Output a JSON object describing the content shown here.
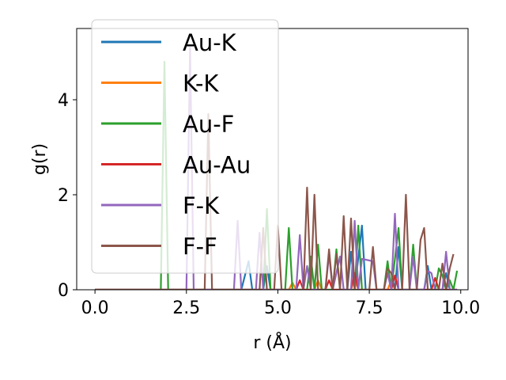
{
  "chart_data": {
    "type": "line",
    "xlabel": "r (Å)",
    "ylabel": "g(r)",
    "xlim": [
      -0.5,
      10.2
    ],
    "ylim": [
      0,
      5.5
    ],
    "xticks": [
      0.0,
      2.5,
      5.0,
      7.5,
      10.0
    ],
    "xtick_labels": [
      "0.0",
      "2.5",
      "5.0",
      "7.5",
      "10.0"
    ],
    "yticks": [
      0,
      2,
      4
    ],
    "ytick_labels": [
      "0",
      "2",
      "4"
    ],
    "legend_position": "upper-left",
    "series": [
      {
        "name": "Au-K",
        "color": "#1f77b4",
        "points": [
          [
            0.0,
            0
          ],
          [
            4.0,
            0
          ],
          [
            4.1,
            0.3
          ],
          [
            4.2,
            0.6
          ],
          [
            4.3,
            0
          ],
          [
            4.6,
            0
          ],
          [
            4.7,
            0.5
          ],
          [
            4.8,
            0
          ],
          [
            6.9,
            0
          ],
          [
            7.0,
            0.8
          ],
          [
            7.1,
            0
          ],
          [
            7.3,
            1.35
          ],
          [
            7.4,
            0
          ],
          [
            8.2,
            0
          ],
          [
            8.3,
            0.9
          ],
          [
            8.4,
            0
          ],
          [
            9.0,
            0
          ],
          [
            9.1,
            0.5
          ],
          [
            9.2,
            0
          ],
          [
            9.5,
            0
          ],
          [
            9.6,
            0.35
          ],
          [
            9.7,
            0
          ],
          [
            9.9,
            0
          ]
        ]
      },
      {
        "name": "K-K",
        "color": "#ff7f0e",
        "points": [
          [
            0.0,
            0
          ],
          [
            5.3,
            0
          ],
          [
            5.4,
            0.15
          ],
          [
            5.5,
            0
          ],
          [
            6.0,
            0
          ],
          [
            6.1,
            0.2
          ],
          [
            6.2,
            0
          ],
          [
            7.0,
            0
          ],
          [
            7.1,
            0.25
          ],
          [
            7.2,
            0
          ],
          [
            8.0,
            0
          ],
          [
            8.1,
            0.2
          ],
          [
            8.2,
            0
          ],
          [
            9.9,
            0
          ]
        ]
      },
      {
        "name": "Au-F",
        "color": "#2ca02c",
        "points": [
          [
            0.0,
            0
          ],
          [
            1.8,
            0
          ],
          [
            1.9,
            4.8
          ],
          [
            2.0,
            0
          ],
          [
            4.6,
            0
          ],
          [
            4.7,
            1.7
          ],
          [
            4.8,
            0
          ],
          [
            5.2,
            0
          ],
          [
            5.3,
            1.3
          ],
          [
            5.4,
            0
          ],
          [
            5.8,
            0
          ],
          [
            5.9,
            0.7
          ],
          [
            6.0,
            0
          ],
          [
            6.1,
            0.95
          ],
          [
            6.2,
            0
          ],
          [
            6.5,
            0
          ],
          [
            6.6,
            0.85
          ],
          [
            6.7,
            0
          ],
          [
            7.1,
            0
          ],
          [
            7.2,
            1.35
          ],
          [
            7.3,
            0
          ],
          [
            7.9,
            0
          ],
          [
            8.0,
            0.6
          ],
          [
            8.1,
            0
          ],
          [
            8.3,
            1.3
          ],
          [
            8.4,
            0
          ],
          [
            8.6,
            0
          ],
          [
            8.7,
            0.95
          ],
          [
            8.8,
            0
          ],
          [
            9.3,
            0
          ],
          [
            9.4,
            0.45
          ],
          [
            9.5,
            0.3
          ],
          [
            9.6,
            0
          ],
          [
            9.7,
            0.2
          ],
          [
            9.8,
            0
          ],
          [
            9.9,
            0.4
          ]
        ]
      },
      {
        "name": "Au-Au",
        "color": "#d62728",
        "points": [
          [
            0.0,
            0
          ],
          [
            5.5,
            0
          ],
          [
            5.6,
            0.2
          ],
          [
            5.7,
            0
          ],
          [
            6.3,
            0
          ],
          [
            6.4,
            0.2
          ],
          [
            6.5,
            0
          ],
          [
            7.0,
            0
          ],
          [
            7.1,
            0.35
          ],
          [
            7.2,
            0
          ],
          [
            8.1,
            0
          ],
          [
            8.2,
            0.3
          ],
          [
            8.3,
            0
          ],
          [
            9.2,
            0
          ],
          [
            9.3,
            0.25
          ],
          [
            9.4,
            0
          ],
          [
            9.9,
            0
          ]
        ]
      },
      {
        "name": "F-K",
        "color": "#9467bd",
        "points": [
          [
            0.0,
            0
          ],
          [
            2.5,
            0
          ],
          [
            2.6,
            5.1
          ],
          [
            2.7,
            0
          ],
          [
            3.8,
            0
          ],
          [
            3.9,
            1.45
          ],
          [
            4.0,
            0
          ],
          [
            4.4,
            0
          ],
          [
            4.5,
            1.2
          ],
          [
            4.6,
            0
          ],
          [
            5.5,
            0
          ],
          [
            5.6,
            1.15
          ],
          [
            5.7,
            0
          ],
          [
            5.8,
            0.5
          ],
          [
            5.9,
            0
          ],
          [
            6.3,
            0
          ],
          [
            6.4,
            0.75
          ],
          [
            6.5,
            0
          ],
          [
            6.7,
            0.7
          ],
          [
            6.8,
            0
          ],
          [
            7.0,
            0
          ],
          [
            7.1,
            1.45
          ],
          [
            7.2,
            0
          ],
          [
            7.3,
            0.65
          ],
          [
            7.6,
            0.6
          ],
          [
            7.7,
            0
          ],
          [
            7.9,
            0
          ],
          [
            8.0,
            0.35
          ],
          [
            8.1,
            0
          ],
          [
            8.2,
            1.6
          ],
          [
            8.3,
            0
          ],
          [
            8.6,
            0
          ],
          [
            8.7,
            0.7
          ],
          [
            8.8,
            0
          ],
          [
            9.0,
            0
          ],
          [
            9.1,
            0.4
          ],
          [
            9.2,
            0.35
          ],
          [
            9.3,
            0
          ],
          [
            9.5,
            0
          ],
          [
            9.6,
            0.8
          ],
          [
            9.7,
            0
          ],
          [
            9.9,
            0
          ]
        ]
      },
      {
        "name": "F-F",
        "color": "#8c564b",
        "points": [
          [
            0.0,
            0
          ],
          [
            3.0,
            0
          ],
          [
            3.1,
            3.7
          ],
          [
            3.2,
            0
          ],
          [
            4.5,
            0
          ],
          [
            4.6,
            1.3
          ],
          [
            4.7,
            0
          ],
          [
            4.9,
            0
          ],
          [
            5.0,
            1.35
          ],
          [
            5.1,
            0
          ],
          [
            5.7,
            0
          ],
          [
            5.8,
            2.15
          ],
          [
            5.9,
            0
          ],
          [
            6.0,
            2.0
          ],
          [
            6.1,
            0
          ],
          [
            6.3,
            0
          ],
          [
            6.4,
            0.85
          ],
          [
            6.5,
            0
          ],
          [
            6.6,
            0.75
          ],
          [
            6.7,
            0
          ],
          [
            6.8,
            1.55
          ],
          [
            6.9,
            0
          ],
          [
            7.0,
            1.5
          ],
          [
            7.1,
            0
          ],
          [
            7.5,
            0
          ],
          [
            7.6,
            0.9
          ],
          [
            7.7,
            0
          ],
          [
            7.9,
            0
          ],
          [
            8.0,
            0.45
          ],
          [
            8.1,
            0.35
          ],
          [
            8.2,
            0
          ],
          [
            8.4,
            0
          ],
          [
            8.5,
            2.0
          ],
          [
            8.6,
            0
          ],
          [
            8.8,
            0
          ],
          [
            8.9,
            1.05
          ],
          [
            9.0,
            1.3
          ],
          [
            9.1,
            0
          ],
          [
            9.4,
            0
          ],
          [
            9.5,
            0.55
          ],
          [
            9.6,
            0
          ],
          [
            9.7,
            0.45
          ],
          [
            9.8,
            0.75
          ]
        ]
      }
    ]
  }
}
